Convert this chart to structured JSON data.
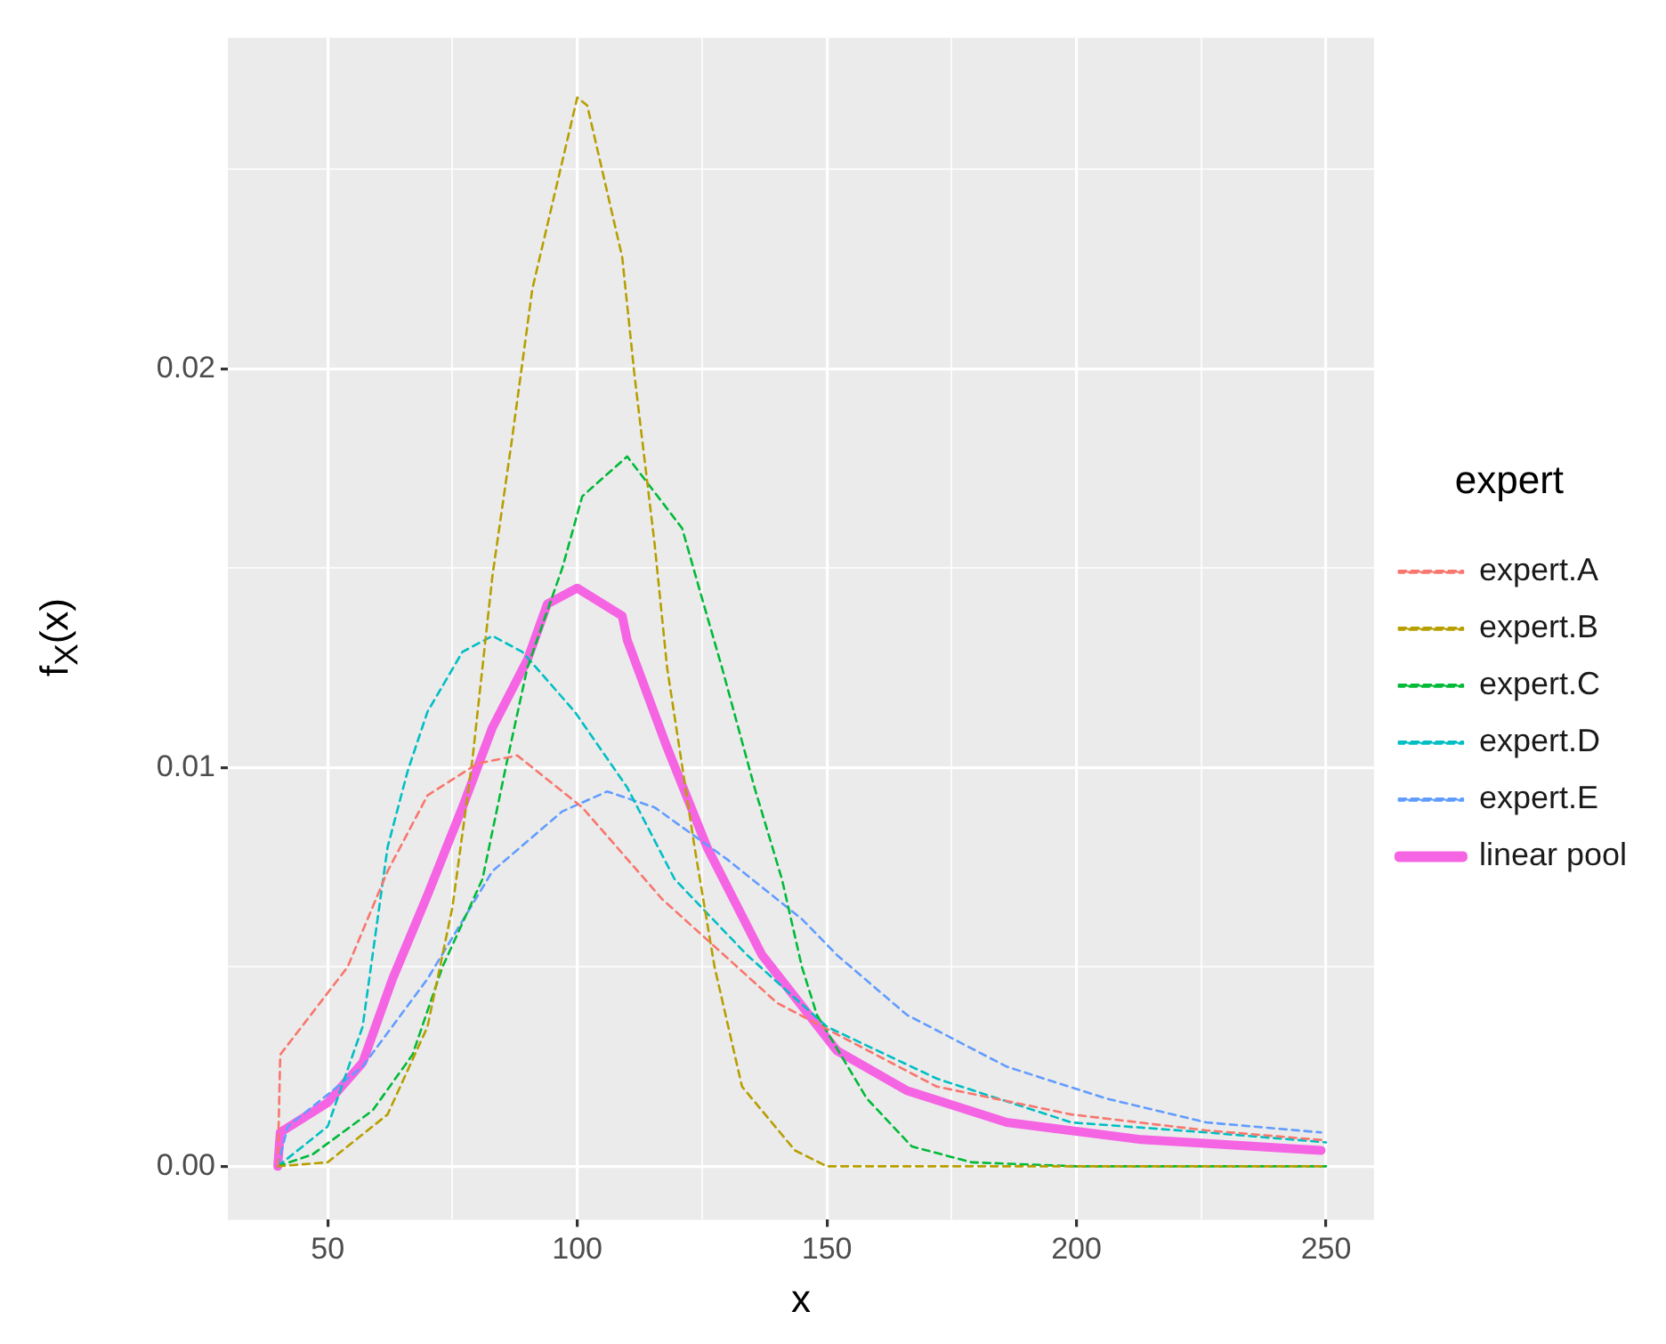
{
  "chart_data": {
    "type": "line",
    "xlabel": "x",
    "ylabel": "f$_{X}$(x)",
    "legend_title": "expert",
    "legend": "right",
    "grid": true,
    "marker": "none",
    "xlim": [
      30,
      259.6
    ],
    "xticks": [
      {
        "value": 50,
        "label": "50"
      },
      {
        "value": 75,
        "label": null
      },
      {
        "value": 100,
        "label": "100"
      },
      {
        "value": 125,
        "label": null
      },
      {
        "value": 150,
        "label": "150"
      },
      {
        "value": 175,
        "label": null
      },
      {
        "value": 200,
        "label": "200"
      },
      {
        "value": 225,
        "label": null
      },
      {
        "value": 250,
        "label": "250"
      }
    ],
    "ylim": [
      -0.00134,
      0.0283
    ],
    "yticks": [
      {
        "value": 0,
        "label": "0.00"
      },
      {
        "value": 0.005,
        "label": null
      },
      {
        "value": 0.01,
        "label": "0.01"
      },
      {
        "value": 0.015,
        "label": null
      },
      {
        "value": 0.02,
        "label": "0.02"
      },
      {
        "value": 0.025,
        "label": null
      }
    ],
    "series": [
      {
        "name": "expert.A",
        "color": "#f8766d",
        "line_style": "dashed",
        "x": [
          40,
          40.5,
          54,
          62,
          70,
          80,
          88,
          101,
          117,
          140,
          172,
          199,
          226,
          250
        ],
        "values": [
          0,
          0.0028,
          0.005,
          0.0074,
          0.0093,
          0.0101,
          0.0103,
          0.009,
          0.0067,
          0.0041,
          0.002,
          0.0013,
          0.0009,
          0.00065
        ]
      },
      {
        "name": "expert.B",
        "color": "#b79f00",
        "line_style": "dashed",
        "x": [
          40,
          50,
          62,
          70,
          75,
          79,
          81,
          83,
          87,
          91,
          100,
          102,
          109,
          111.5,
          115.5,
          118,
          123.5,
          127.5,
          133,
          143.6,
          150,
          200,
          250
        ],
        "values": [
          0,
          0.0001,
          0.0013,
          0.0035,
          0.0065,
          0.0102,
          0.0125,
          0.0148,
          0.0183,
          0.022,
          0.0268,
          0.0266,
          0.0228,
          0.0198,
          0.0156,
          0.0125,
          0.008,
          0.005,
          0.002,
          0.0004,
          0,
          0,
          0
        ]
      },
      {
        "name": "expert.C",
        "color": "#00ba38",
        "line_style": "dashed",
        "x": [
          40,
          47,
          59,
          67,
          73,
          81,
          86,
          90,
          97,
          101,
          110,
          121,
          126,
          129,
          135.5,
          141,
          145,
          148,
          158,
          167,
          179,
          200,
          250
        ],
        "values": [
          0,
          0.0003,
          0.0014,
          0.0028,
          0.005,
          0.0072,
          0.0102,
          0.0125,
          0.015,
          0.0168,
          0.0178,
          0.016,
          0.0138,
          0.0125,
          0.0095,
          0.0072,
          0.005,
          0.0038,
          0.0017,
          0.0005,
          0.0001,
          0,
          0
        ]
      },
      {
        "name": "expert.D",
        "color": "#00bfc4",
        "line_style": "dashed",
        "x": [
          40,
          50,
          57,
          62,
          66,
          70,
          77,
          83,
          89,
          99.5,
          110,
          119.5,
          134,
          150,
          172,
          199,
          226,
          250
        ],
        "values": [
          0,
          0.001,
          0.0035,
          0.008,
          0.0099,
          0.0114,
          0.0129,
          0.0133,
          0.0129,
          0.0114,
          0.0095,
          0.0072,
          0.0053,
          0.0035,
          0.0022,
          0.0011,
          0.00085,
          0.0006
        ]
      },
      {
        "name": "expert.E",
        "color": "#619cff",
        "line_style": "dashed",
        "x": [
          40,
          42,
          57,
          70,
          83,
          97,
          106,
          115.5,
          130,
          145,
          152,
          166,
          186,
          206,
          226,
          249
        ],
        "values": [
          0,
          0.001,
          0.0025,
          0.0047,
          0.0074,
          0.0089,
          0.0094,
          0.009,
          0.0077,
          0.0062,
          0.0053,
          0.0038,
          0.0025,
          0.0017,
          0.0011,
          0.00085
        ]
      },
      {
        "name": "linear pool",
        "color": "#f564e3",
        "line_style": "solid",
        "x": [
          40,
          40.5,
          50,
          57,
          63,
          70,
          77,
          83,
          90,
          94,
          100,
          109,
          110,
          118,
          126,
          137,
          152,
          166,
          186,
          213,
          249
        ],
        "values": [
          0,
          0.00085,
          0.0016,
          0.0026,
          0.0047,
          0.0068,
          0.009,
          0.011,
          0.0127,
          0.0141,
          0.0145,
          0.0138,
          0.0132,
          0.0105,
          0.008,
          0.0053,
          0.0029,
          0.0019,
          0.0011,
          0.00067,
          0.0004
        ]
      }
    ]
  }
}
